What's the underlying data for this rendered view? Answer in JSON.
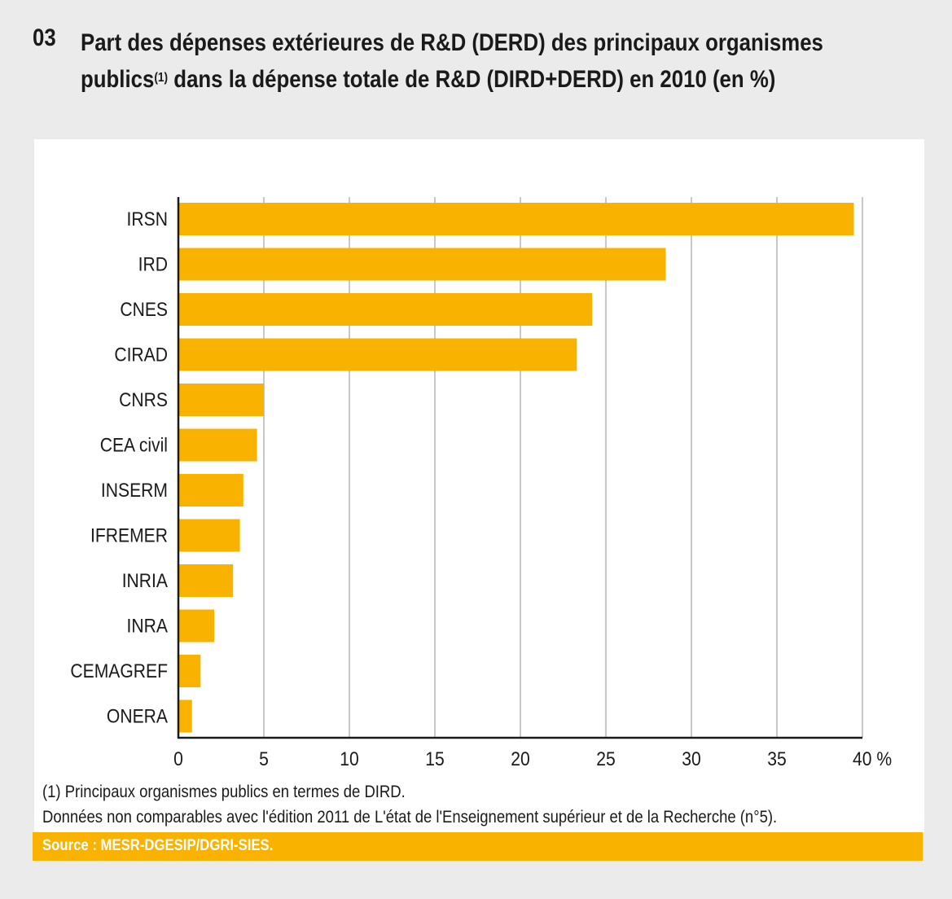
{
  "header": {
    "number": "03",
    "title_part1": "Part des dépenses extérieures de R&D (DERD) des principaux organismes publics",
    "title_sup": "(1)",
    "title_part2": " dans la dépense totale de R&D (DIRD+DERD) en 2010 (en %)"
  },
  "chart_data": {
    "type": "bar",
    "orientation": "horizontal",
    "title": "Part des dépenses extérieures de R&D (DERD) des principaux organismes publics(1) dans la dépense totale de R&D (DIRD+DERD) en 2010 (en %)",
    "categories": [
      "IRSN",
      "IRD",
      "CNES",
      "CIRAD",
      "CNRS",
      "CEA civil",
      "INSERM",
      "IFREMER",
      "INRIA",
      "INRA",
      "CEMAGREF",
      "ONERA"
    ],
    "values": [
      39.5,
      28.5,
      24.2,
      23.3,
      5.0,
      4.6,
      3.8,
      3.6,
      3.2,
      2.1,
      1.3,
      0.8
    ],
    "xlim": [
      0,
      40
    ],
    "xticks": [
      "0",
      "5",
      "10",
      "15",
      "20",
      "25",
      "30",
      "35",
      "40 %"
    ],
    "xlabel": "",
    "ylabel": "",
    "grid": true,
    "bar_color": "#f9b200"
  },
  "notes": {
    "footnote": "(1) Principaux organismes publics en termes de DIRD.",
    "comparability": "Données non comparables avec l'édition 2011 de L'état de l'Enseignement supérieur et de la Recherche (n°5)."
  },
  "source": "Source : MESR-DGESIP/DGRI-SIES."
}
